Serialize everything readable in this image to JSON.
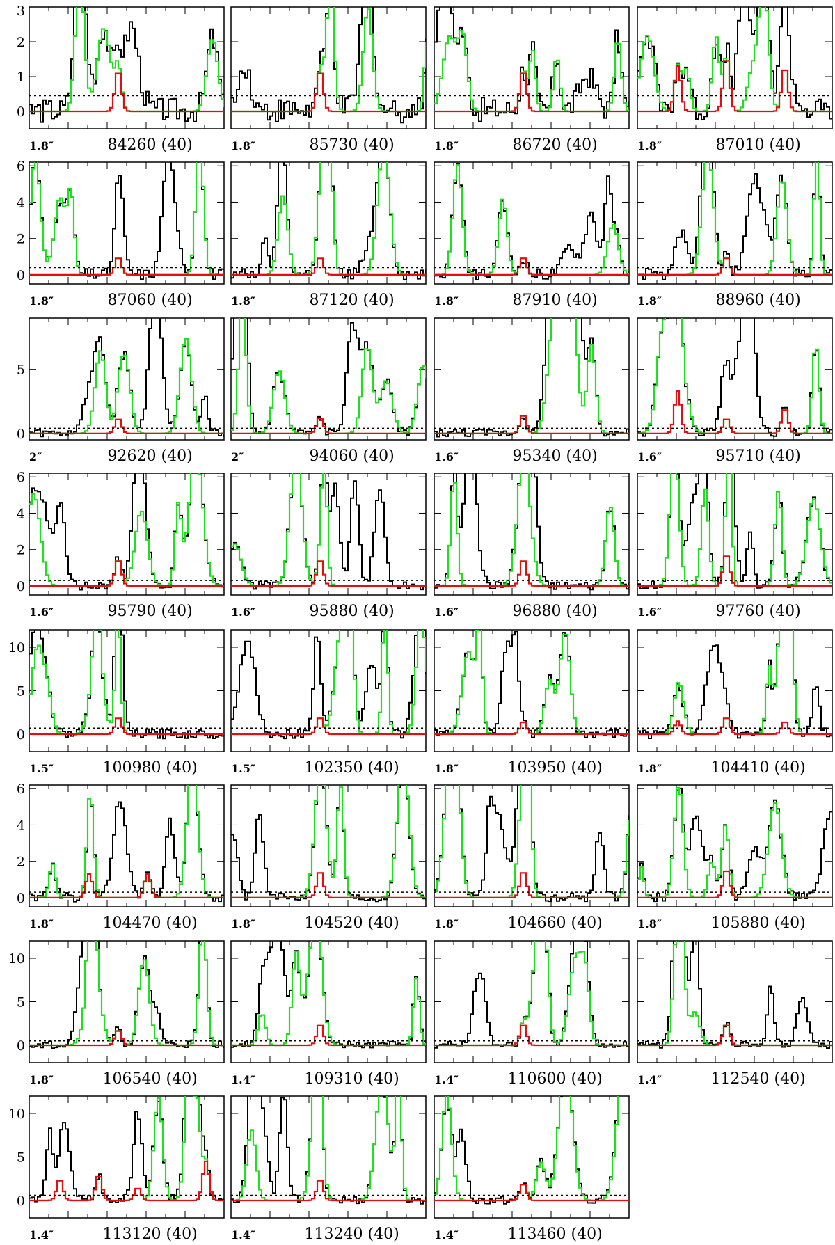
{
  "chart_data": {
    "type": "line",
    "description_colors": {
      "observed": "#000000",
      "full_model": "#22dd22",
      "line_model": "#dd1111",
      "noise_level": "#000000"
    },
    "rows": [
      {
        "ylim": [
          -0.5,
          3.0
        ],
        "yticks": [
          0,
          1,
          2,
          3
        ]
      },
      {
        "ylim": [
          -0.5,
          6.2
        ],
        "yticks": [
          0,
          2,
          4,
          6
        ]
      },
      {
        "ylim": [
          -0.5,
          9.0
        ],
        "yticks": [
          0,
          5
        ]
      },
      {
        "ylim": [
          -0.5,
          6.2
        ],
        "yticks": [
          0,
          2,
          4,
          6
        ]
      },
      {
        "ylim": [
          -2.0,
          12.0
        ],
        "yticks": [
          0,
          5,
          10
        ]
      },
      {
        "ylim": [
          -0.5,
          6.2
        ],
        "yticks": [
          0,
          2,
          4,
          6
        ]
      },
      {
        "ylim": [
          -2.0,
          12.0
        ],
        "yticks": [
          0,
          5,
          10
        ]
      },
      {
        "ylim": [
          -2.0,
          12.0
        ],
        "yticks": [
          0,
          5,
          10
        ]
      }
    ],
    "panels": [
      {
        "row": 0,
        "col": 0,
        "freq": "84260",
        "width": "(40)",
        "beam": "1.8″",
        "noise": 0.45,
        "peaks": [
          1.2
        ]
      },
      {
        "row": 0,
        "col": 1,
        "freq": "85730",
        "width": "(40)",
        "beam": "1.8″",
        "noise": 0.45,
        "peaks": [
          1.2
        ]
      },
      {
        "row": 0,
        "col": 2,
        "freq": "86720",
        "width": "(40)",
        "beam": "1.8″",
        "noise": 0.45,
        "peaks": [
          1.2
        ]
      },
      {
        "row": 0,
        "col": 3,
        "freq": "87010",
        "width": "(40)",
        "beam": "1.8″",
        "noise": 0.45,
        "peaks": [
          1.3,
          1.6,
          1.3
        ]
      },
      {
        "row": 1,
        "col": 0,
        "freq": "87060",
        "width": "(40)",
        "beam": "1.8″",
        "noise": 0.4,
        "peaks": [
          1.0
        ]
      },
      {
        "row": 1,
        "col": 1,
        "freq": "87120",
        "width": "(40)",
        "beam": "1.8″",
        "noise": 0.4,
        "peaks": [
          1.0
        ]
      },
      {
        "row": 1,
        "col": 2,
        "freq": "87910",
        "width": "(40)",
        "beam": "1.8″",
        "noise": 0.4,
        "peaks": [
          1.0
        ]
      },
      {
        "row": 1,
        "col": 3,
        "freq": "88960",
        "width": "(40)",
        "beam": "1.8″",
        "noise": 0.4,
        "peaks": [
          1.0
        ]
      },
      {
        "row": 2,
        "col": 0,
        "freq": "92620",
        "width": "(40)",
        "beam": "2″",
        "noise": 0.4,
        "peaks": [
          1.2
        ]
      },
      {
        "row": 2,
        "col": 1,
        "freq": "94060",
        "width": "(40)",
        "beam": "2″",
        "noise": 0.4,
        "peaks": [
          1.3
        ]
      },
      {
        "row": 2,
        "col": 2,
        "freq": "95340",
        "width": "(40)",
        "beam": "1.6″",
        "noise": 0.4,
        "peaks": [
          1.5
        ]
      },
      {
        "row": 2,
        "col": 3,
        "freq": "95710",
        "width": "(40)",
        "beam": "1.6″",
        "noise": 0.4,
        "peaks": [
          3.3,
          1.2,
          2.0
        ]
      },
      {
        "row": 3,
        "col": 0,
        "freq": "95790",
        "width": "(40)",
        "beam": "1.6″",
        "noise": 0.3,
        "peaks": [
          1.5
        ]
      },
      {
        "row": 3,
        "col": 1,
        "freq": "95880",
        "width": "(40)",
        "beam": "1.6″",
        "noise": 0.3,
        "peaks": [
          1.5
        ]
      },
      {
        "row": 3,
        "col": 2,
        "freq": "96880",
        "width": "(40)",
        "beam": "1.6″",
        "noise": 0.3,
        "peaks": [
          1.5
        ]
      },
      {
        "row": 3,
        "col": 3,
        "freq": "97760",
        "width": "(40)",
        "beam": "1.6″",
        "noise": 0.3,
        "peaks": [
          1.8
        ]
      },
      {
        "row": 4,
        "col": 0,
        "freq": "100980",
        "width": "(40)",
        "beam": "1.5″",
        "noise": 0.7,
        "peaks": [
          2.0
        ]
      },
      {
        "row": 4,
        "col": 1,
        "freq": "102350",
        "width": "(40)",
        "beam": "1.5″",
        "noise": 0.7,
        "peaks": [
          2.0
        ]
      },
      {
        "row": 4,
        "col": 2,
        "freq": "103950",
        "width": "(40)",
        "beam": "1.8″",
        "noise": 0.7,
        "peaks": [
          1.5
        ]
      },
      {
        "row": 4,
        "col": 3,
        "freq": "104410",
        "width": "(40)",
        "beam": "1.8″",
        "noise": 0.7,
        "peaks": [
          1.5,
          2.0,
          1.5
        ]
      },
      {
        "row": 5,
        "col": 0,
        "freq": "104470",
        "width": "(40)",
        "beam": "1.8″",
        "noise": 0.3,
        "peaks": [
          1.3,
          1.3
        ]
      },
      {
        "row": 5,
        "col": 1,
        "freq": "104520",
        "width": "(40)",
        "beam": "1.8″",
        "noise": 0.3,
        "peaks": [
          1.5
        ]
      },
      {
        "row": 5,
        "col": 2,
        "freq": "104660",
        "width": "(40)",
        "beam": "1.8″",
        "noise": 0.3,
        "peaks": [
          1.5
        ]
      },
      {
        "row": 5,
        "col": 3,
        "freq": "105880",
        "width": "(40)",
        "beam": "1.8″",
        "noise": 0.3,
        "peaks": [
          1.6
        ]
      },
      {
        "row": 6,
        "col": 0,
        "freq": "106540",
        "width": "(40)",
        "beam": "1.8″",
        "noise": 0.5,
        "peaks": [
          1.8
        ]
      },
      {
        "row": 6,
        "col": 1,
        "freq": "109310",
        "width": "(40)",
        "beam": "1.4″",
        "noise": 0.5,
        "peaks": [
          2.5
        ]
      },
      {
        "row": 6,
        "col": 2,
        "freq": "110600",
        "width": "(40)",
        "beam": "1.4″",
        "noise": 0.5,
        "peaks": [
          2.5
        ]
      },
      {
        "row": 6,
        "col": 3,
        "freq": "112540",
        "width": "(40)",
        "beam": "1.4″",
        "noise": 0.5,
        "peaks": [
          2.5
        ]
      },
      {
        "row": 7,
        "col": 0,
        "freq": "113120",
        "width": "(40)",
        "beam": "1.4″",
        "noise": 0.6,
        "peaks": [
          2.5,
          3.0,
          1.5,
          4.5
        ]
      },
      {
        "row": 7,
        "col": 1,
        "freq": "113240",
        "width": "(40)",
        "beam": "1.4″",
        "noise": 0.6,
        "peaks": [
          2.5
        ]
      },
      {
        "row": 7,
        "col": 2,
        "freq": "113460",
        "width": "(40)",
        "beam": "1.4″",
        "noise": 0.6,
        "peaks": [
          2.0
        ]
      }
    ]
  }
}
